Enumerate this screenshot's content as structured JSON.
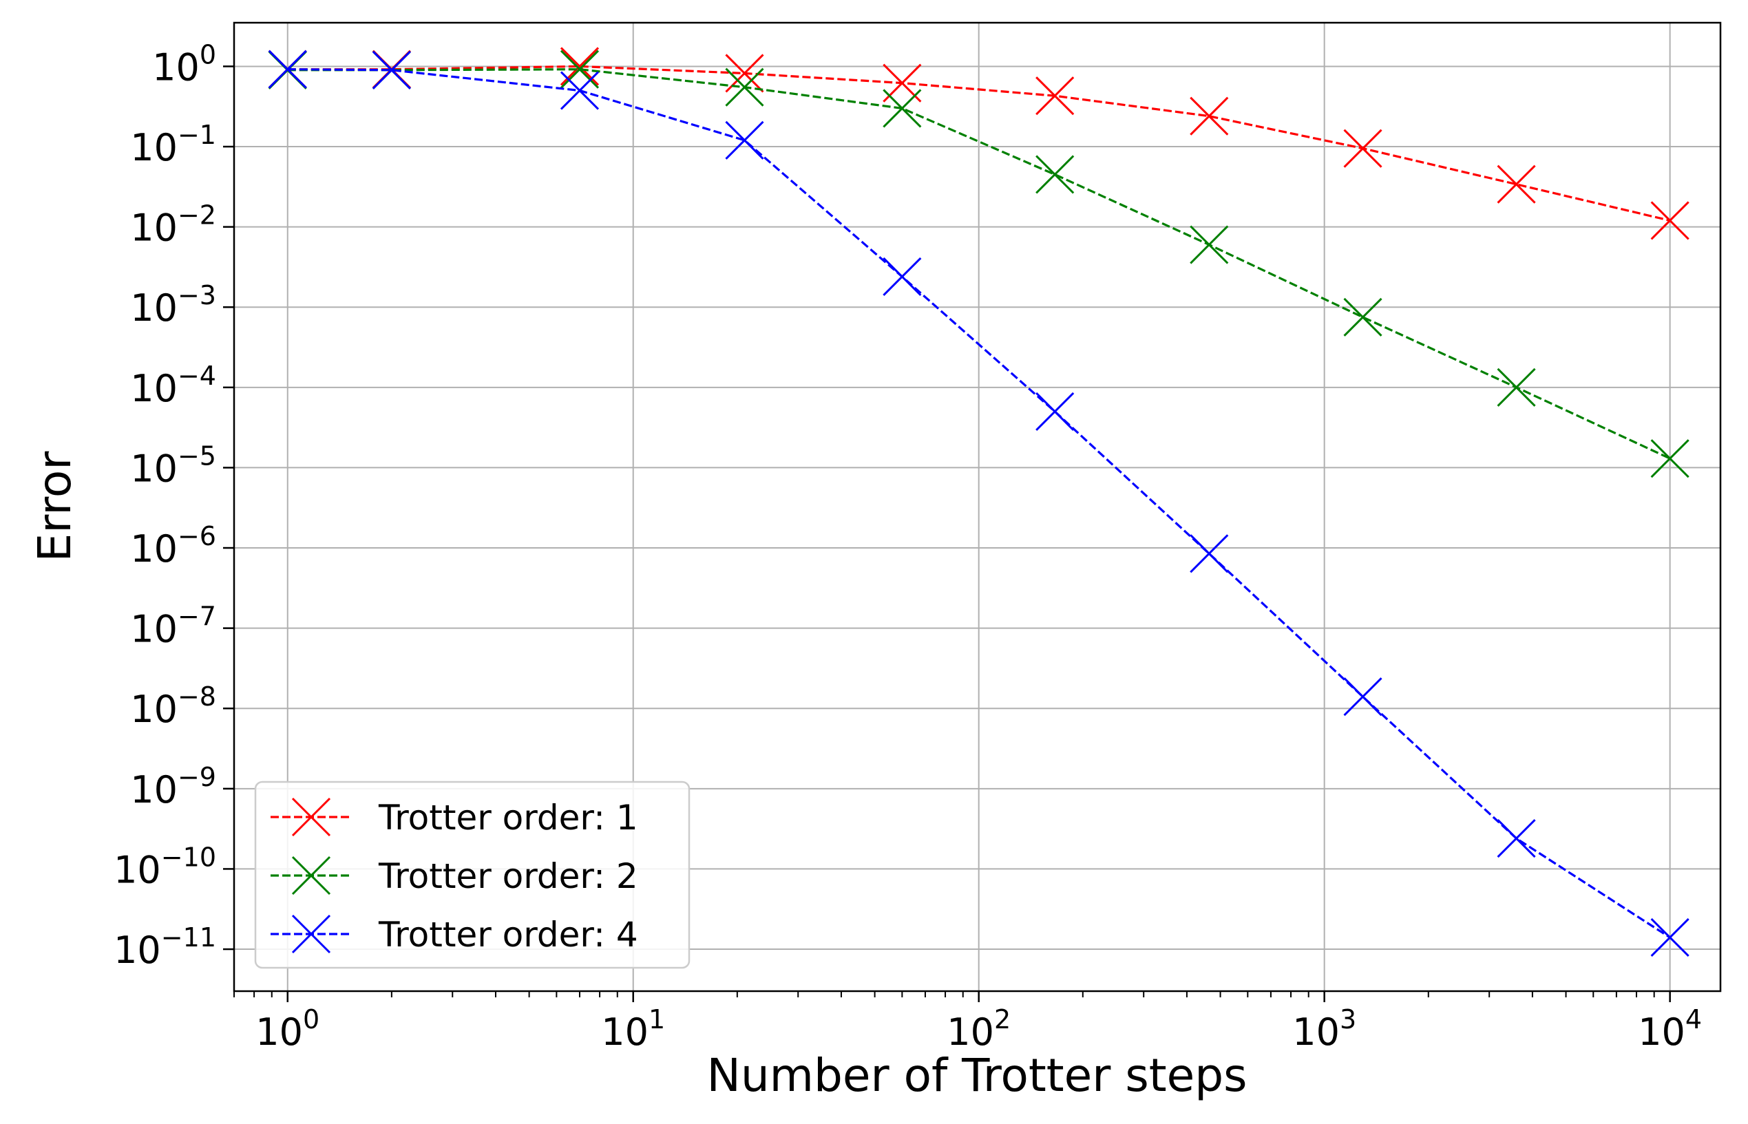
{
  "chart_data": {
    "type": "line",
    "title": "",
    "xlabel": "Number of Trotter steps",
    "ylabel": "Error",
    "xscale": "log",
    "yscale": "log",
    "xlim": [
      0.7,
      14000
    ],
    "ylim": [
      3e-12,
      3.5
    ],
    "grid": true,
    "legend_position": "lower-left",
    "x_ticks": [
      {
        "value": 1,
        "base": "10",
        "exp": "0"
      },
      {
        "value": 10,
        "base": "10",
        "exp": "1"
      },
      {
        "value": 100,
        "base": "10",
        "exp": "2"
      },
      {
        "value": 1000,
        "base": "10",
        "exp": "3"
      },
      {
        "value": 10000,
        "base": "10",
        "exp": "4"
      }
    ],
    "y_ticks": [
      {
        "value": 1,
        "base": "10",
        "exp": "0"
      },
      {
        "value": 0.1,
        "base": "10",
        "exp": "−1"
      },
      {
        "value": 0.01,
        "base": "10",
        "exp": "−2"
      },
      {
        "value": 0.001,
        "base": "10",
        "exp": "−3"
      },
      {
        "value": 0.0001,
        "base": "10",
        "exp": "−4"
      },
      {
        "value": 1e-05,
        "base": "10",
        "exp": "−5"
      },
      {
        "value": 1e-06,
        "base": "10",
        "exp": "−6"
      },
      {
        "value": 1e-07,
        "base": "10",
        "exp": "−7"
      },
      {
        "value": 1e-08,
        "base": "10",
        "exp": "−8"
      },
      {
        "value": 1e-09,
        "base": "10",
        "exp": "−9"
      },
      {
        "value": 1e-10,
        "base": "10",
        "exp": "−10"
      },
      {
        "value": 1e-11,
        "base": "10",
        "exp": "−11"
      }
    ],
    "series": [
      {
        "name": "Trotter order: 1",
        "color": "#ff0000",
        "marker": "x",
        "linestyle": "dashed",
        "x": [
          1,
          2,
          7,
          21,
          60,
          166,
          464,
          1292,
          3594,
          10000
        ],
        "y": [
          0.92,
          0.92,
          1.0,
          0.82,
          0.62,
          0.43,
          0.24,
          0.095,
          0.034,
          0.012
        ]
      },
      {
        "name": "Trotter order: 2",
        "color": "#008000",
        "marker": "x",
        "linestyle": "dashed",
        "x": [
          1,
          2,
          7,
          21,
          60,
          166,
          464,
          1292,
          3594,
          10000
        ],
        "y": [
          0.9,
          0.9,
          0.92,
          0.55,
          0.3,
          0.045,
          0.006,
          0.00075,
          0.0001,
          1.3e-05
        ]
      },
      {
        "name": "Trotter order: 4",
        "color": "#0000ff",
        "marker": "x",
        "linestyle": "dashed",
        "x": [
          1,
          2,
          7,
          21,
          60,
          166,
          464,
          1292,
          3594,
          10000
        ],
        "y": [
          0.92,
          0.9,
          0.5,
          0.12,
          0.0024,
          5e-05,
          8.5e-07,
          1.4e-08,
          2.4e-10,
          1.4e-11
        ]
      }
    ]
  }
}
